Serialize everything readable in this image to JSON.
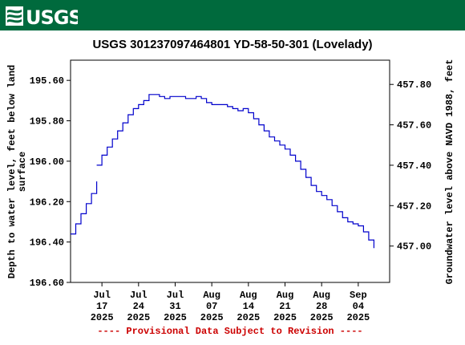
{
  "logo_text": "USGS",
  "colors": {
    "banner": "#006a3d",
    "series": "#0000cc",
    "notice": "#cc0000"
  },
  "chart_data": {
    "type": "line",
    "title": "USGS 301237097464801 YD-58-50-301 (Lovelady)",
    "ylabel": "Depth to water level, feet below land surface",
    "y2label": "Groundwater level above NAVD 1988, feet",
    "notice": "---- Provisional Data Subject to Revision ----",
    "y_inverted": true,
    "ylim": [
      196.6,
      195.5
    ],
    "y2lim": [
      456.82,
      457.92
    ],
    "y_ticks": [
      "195.60",
      "195.80",
      "196.00",
      "196.20",
      "196.40",
      "196.60"
    ],
    "y2_ticks": [
      "457.80",
      "457.60",
      "457.40",
      "457.20",
      "457.00"
    ],
    "x_ticks": [
      {
        "month": "Jul",
        "day": "17",
        "year": "2025"
      },
      {
        "month": "Jul",
        "day": "24",
        "year": "2025"
      },
      {
        "month": "Jul",
        "day": "31",
        "year": "2025"
      },
      {
        "month": "Aug",
        "day": "07",
        "year": "2025"
      },
      {
        "month": "Aug",
        "day": "14",
        "year": "2025"
      },
      {
        "month": "Aug",
        "day": "21",
        "year": "2025"
      },
      {
        "month": "Aug",
        "day": "28",
        "year": "2025"
      },
      {
        "month": "Sep",
        "day": "04",
        "year": "2025"
      }
    ],
    "xlim": [
      "2025-07-11",
      "2025-09-10"
    ],
    "grid": false,
    "series": [
      {
        "color": "#0000cc",
        "segments": [
          [
            [
              "2025-07-11",
              196.36
            ],
            [
              "2025-07-12",
              196.31
            ],
            [
              "2025-07-13",
              196.26
            ],
            [
              "2025-07-14",
              196.21
            ],
            [
              "2025-07-15",
              196.16
            ],
            [
              "2025-07-16",
              196.1
            ]
          ],
          [
            [
              "2025-07-16",
              196.02
            ],
            [
              "2025-07-17",
              195.97
            ],
            [
              "2025-07-18",
              195.93
            ],
            [
              "2025-07-19",
              195.89
            ],
            [
              "2025-07-20",
              195.85
            ],
            [
              "2025-07-21",
              195.81
            ],
            [
              "2025-07-22",
              195.77
            ],
            [
              "2025-07-23",
              195.74
            ],
            [
              "2025-07-24",
              195.72
            ],
            [
              "2025-07-25",
              195.7
            ],
            [
              "2025-07-26",
              195.67
            ],
            [
              "2025-07-27",
              195.67
            ],
            [
              "2025-07-28",
              195.68
            ],
            [
              "2025-07-29",
              195.69
            ],
            [
              "2025-07-30",
              195.68
            ],
            [
              "2025-07-31",
              195.68
            ],
            [
              "2025-08-01",
              195.68
            ],
            [
              "2025-08-02",
              195.69
            ],
            [
              "2025-08-03",
              195.69
            ],
            [
              "2025-08-04",
              195.68
            ],
            [
              "2025-08-05",
              195.69
            ],
            [
              "2025-08-06",
              195.71
            ],
            [
              "2025-08-07",
              195.72
            ],
            [
              "2025-08-08",
              195.72
            ],
            [
              "2025-08-09",
              195.72
            ],
            [
              "2025-08-10",
              195.73
            ],
            [
              "2025-08-11",
              195.74
            ],
            [
              "2025-08-12",
              195.75
            ],
            [
              "2025-08-13",
              195.74
            ],
            [
              "2025-08-14",
              195.76
            ],
            [
              "2025-08-15",
              195.79
            ],
            [
              "2025-08-16",
              195.82
            ],
            [
              "2025-08-17",
              195.85
            ],
            [
              "2025-08-18",
              195.88
            ],
            [
              "2025-08-19",
              195.9
            ],
            [
              "2025-08-20",
              195.92
            ],
            [
              "2025-08-21",
              195.94
            ],
            [
              "2025-08-22",
              195.97
            ],
            [
              "2025-08-23",
              196.0
            ],
            [
              "2025-08-24",
              196.04
            ],
            [
              "2025-08-25",
              196.08
            ],
            [
              "2025-08-26",
              196.12
            ],
            [
              "2025-08-27",
              196.15
            ],
            [
              "2025-08-28",
              196.17
            ],
            [
              "2025-08-29",
              196.19
            ],
            [
              "2025-08-30",
              196.22
            ],
            [
              "2025-08-31",
              196.25
            ],
            [
              "2025-09-01",
              196.28
            ],
            [
              "2025-09-02",
              196.3
            ],
            [
              "2025-09-03",
              196.31
            ],
            [
              "2025-09-04",
              196.32
            ],
            [
              "2025-09-05",
              196.35
            ],
            [
              "2025-09-06",
              196.39
            ],
            [
              "2025-09-07",
              196.43
            ]
          ]
        ]
      }
    ]
  }
}
